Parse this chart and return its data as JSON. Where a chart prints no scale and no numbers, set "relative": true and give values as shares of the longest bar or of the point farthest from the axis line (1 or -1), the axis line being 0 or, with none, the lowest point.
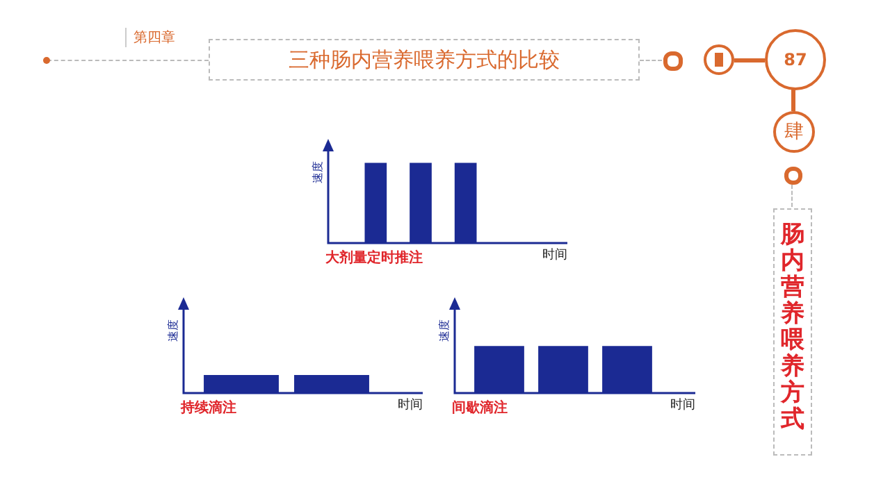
{
  "chart_data": [
    {
      "type": "other",
      "title": "三种肠内营养喂养方式的比较",
      "annotations": [
        "第四章",
        "87",
        "肆",
        "肠内营养喂养方式"
      ]
    },
    {
      "type": "bar",
      "title": "大剂量定时推注",
      "xlabel": "时间",
      "ylabel": "速度",
      "categories": [
        null,
        null,
        null
      ],
      "values": [
        1,
        1,
        1
      ],
      "color": "#1b2a93",
      "relative": true,
      "tick_labels": false
    },
    {
      "type": "bar",
      "title": "持续滴注",
      "xlabel": "时间",
      "ylabel": "速度",
      "categories": [
        null,
        null
      ],
      "values": [
        1,
        1
      ],
      "color": "#1b2a93",
      "relative": true,
      "tick_labels": false
    },
    {
      "type": "bar",
      "title": "间歇滴注",
      "xlabel": "时间",
      "ylabel": "速度",
      "categories": [
        null,
        null,
        null
      ],
      "values": [
        1,
        1,
        1
      ],
      "color": "#1b2a93",
      "relative": true,
      "tick_labels": false
    }
  ]
}
